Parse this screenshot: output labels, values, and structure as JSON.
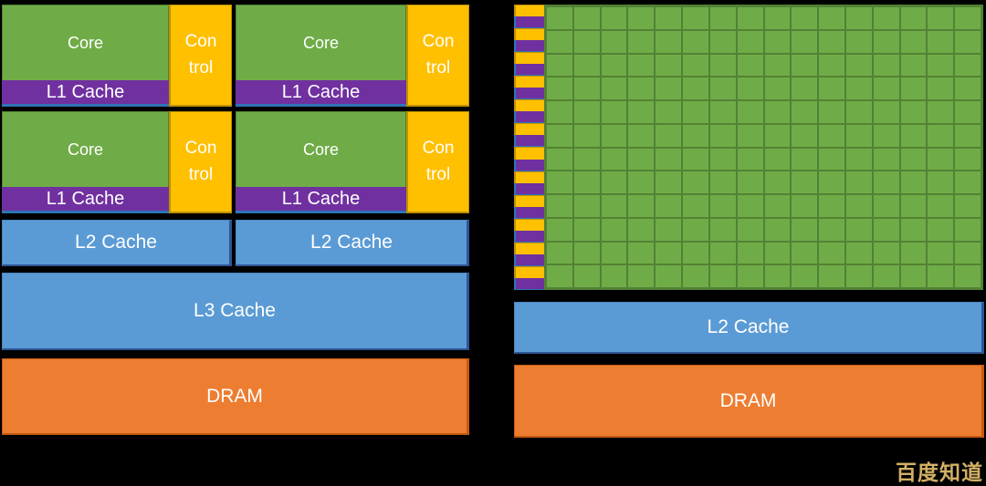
{
  "background_color": "#000000",
  "cpu_diagram": {
    "units": [
      {
        "core": "Core",
        "l1": "L1 Cache",
        "control": "Con trol"
      },
      {
        "core": "Core",
        "l1": "L1 Cache",
        "control": "Con trol"
      },
      {
        "core": "Core",
        "l1": "L1 Cache",
        "control": "Con trol"
      },
      {
        "core": "Core",
        "l1": "L1 Cache",
        "control": "Con trol"
      }
    ],
    "l2_left": "L2 Cache",
    "l2_right": "L2 Cache",
    "l3": "L3 Cache",
    "dram": "DRAM"
  },
  "gpu_diagram": {
    "grid": {
      "rows": 12,
      "columns": 16
    },
    "l2": "L2 Cache",
    "dram": "DRAM"
  },
  "watermark": {
    "text": "百度知道"
  },
  "colors": {
    "core_green": "#6FAC47",
    "grid_line_green": "#538135",
    "control_yellow": "#FFC000",
    "control_yellow_border": "#BF9000",
    "l1_purple": "#7030A0",
    "l1_blue_edge": "#2E75B6",
    "cache_blue": "#5B9BD5",
    "cache_blue_border": "#2F5597",
    "dram_orange": "#ED7D31",
    "dram_orange_border": "#C55A11",
    "watermark_gold": "#D2B065"
  }
}
